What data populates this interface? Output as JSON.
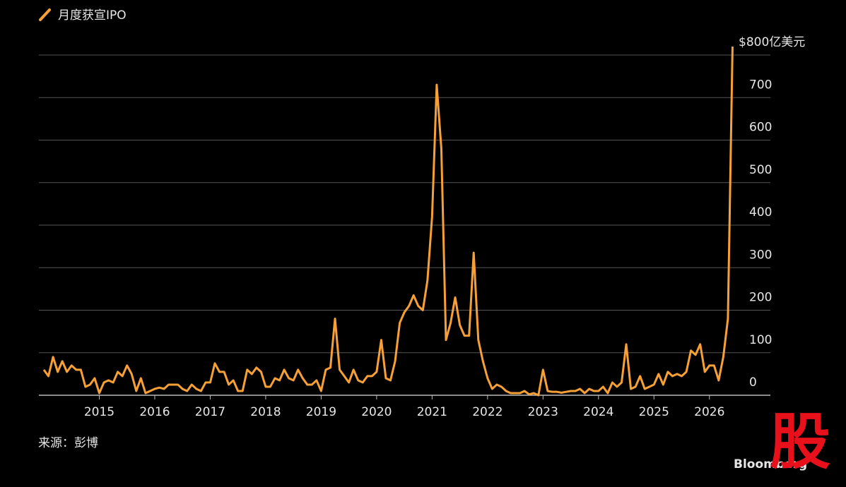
{
  "chart_data": {
    "type": "line",
    "legend": "月度获宣IPO",
    "source": "来源：彭博",
    "brand": "Bloomberg",
    "watermark": "股",
    "color": "#f7a035",
    "grid": true,
    "categories": [
      null,
      null,
      null,
      null,
      null,
      null,
      null,
      null,
      null,
      null,
      null,
      null,
      "2015",
      null,
      null,
      null,
      null,
      null,
      null,
      null,
      null,
      null,
      null,
      null,
      "2016",
      null,
      null,
      null,
      null,
      null,
      null,
      null,
      null,
      null,
      null,
      null,
      "2017",
      null,
      null,
      null,
      null,
      null,
      null,
      null,
      null,
      null,
      null,
      null,
      "2018",
      null,
      null,
      null,
      null,
      null,
      null,
      null,
      null,
      null,
      null,
      null,
      "2019",
      null,
      null,
      null,
      null,
      null,
      null,
      null,
      null,
      null,
      null,
      null,
      "2020",
      null,
      null,
      null,
      null,
      null,
      null,
      null,
      null,
      null,
      null,
      null,
      "2021",
      null,
      null,
      null,
      null,
      null,
      null,
      null,
      null,
      null,
      null,
      null,
      "2022",
      null,
      null,
      null,
      null,
      null,
      null,
      null,
      null,
      null,
      null,
      null,
      "2023",
      null,
      null,
      null,
      null,
      null,
      null,
      null,
      null,
      null,
      null,
      null,
      "2024",
      null,
      null,
      null,
      null,
      null,
      null,
      null,
      null,
      null,
      null,
      null,
      "2025",
      null,
      null,
      null,
      null,
      null,
      null,
      null,
      null,
      null,
      null,
      null,
      "2026",
      null,
      null,
      null,
      null,
      null
    ],
    "values": [
      60,
      45,
      90,
      55,
      80,
      55,
      70,
      60,
      60,
      20,
      25,
      40,
      5,
      30,
      35,
      30,
      55,
      45,
      70,
      50,
      10,
      40,
      5,
      10,
      15,
      18,
      15,
      25,
      25,
      25,
      15,
      10,
      25,
      15,
      10,
      30,
      30,
      75,
      55,
      55,
      25,
      35,
      10,
      10,
      60,
      50,
      65,
      55,
      20,
      20,
      40,
      35,
      60,
      40,
      35,
      60,
      40,
      25,
      25,
      35,
      10,
      60,
      65,
      180,
      60,
      45,
      30,
      60,
      35,
      30,
      45,
      45,
      55,
      130,
      40,
      35,
      80,
      170,
      195,
      210,
      235,
      210,
      200,
      270,
      420,
      730,
      580,
      130,
      170,
      230,
      165,
      140,
      140,
      335,
      130,
      80,
      40,
      15,
      25,
      20,
      10,
      5,
      5,
      5,
      10,
      2,
      5,
      0,
      60,
      10,
      8,
      8,
      6,
      8,
      10,
      10,
      15,
      5,
      15,
      10,
      10,
      20,
      5,
      30,
      20,
      30,
      120,
      15,
      20,
      45,
      15,
      20,
      25,
      50,
      25,
      55,
      45,
      50,
      45,
      55,
      105,
      95,
      120,
      55,
      70,
      70,
      35,
      90,
      180,
      820
    ],
    "ylim": [
      0,
      800
    ],
    "yticks": [
      0,
      100,
      200,
      300,
      400,
      500,
      600,
      700,
      {
        "value": 800,
        "label": "$800亿美元"
      }
    ]
  }
}
